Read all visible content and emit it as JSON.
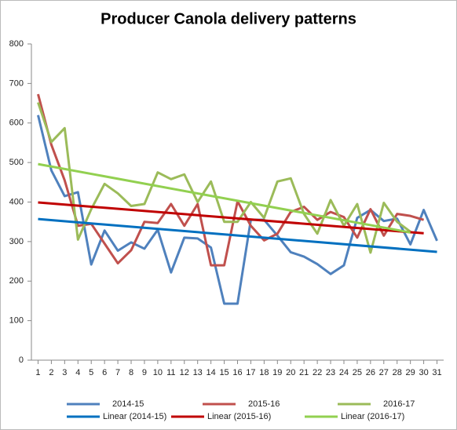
{
  "chart_data": {
    "type": "line",
    "title": "Producer Canola delivery patterns",
    "x": [
      1,
      2,
      3,
      4,
      5,
      6,
      7,
      8,
      9,
      10,
      11,
      12,
      13,
      14,
      15,
      16,
      17,
      18,
      19,
      20,
      21,
      22,
      23,
      24,
      25,
      26,
      27,
      28,
      29,
      30,
      31
    ],
    "xlim": [
      0.5,
      31.5
    ],
    "xticks": [
      1,
      2,
      3,
      4,
      5,
      6,
      7,
      8,
      9,
      10,
      11,
      12,
      13,
      14,
      15,
      16,
      17,
      18,
      19,
      20,
      21,
      22,
      23,
      24,
      25,
      26,
      27,
      28,
      29,
      30,
      31
    ],
    "ylim": [
      0,
      800
    ],
    "yticks": [
      0,
      100,
      200,
      300,
      400,
      500,
      600,
      700,
      800
    ],
    "grid": false,
    "legend": "bottom",
    "series": [
      {
        "name": "2014-15",
        "color": "#4f81bd",
        "values": [
          620,
          480,
          415,
          425,
          242,
          328,
          277,
          298,
          282,
          330,
          222,
          310,
          308,
          285,
          143,
          143,
          355,
          355,
          315,
          273,
          262,
          243,
          218,
          240,
          360,
          380,
          352,
          358,
          293,
          380,
          302
        ]
      },
      {
        "name": "2015-16",
        "color": "#c0504d",
        "values": [
          673,
          545,
          455,
          340,
          345,
          295,
          245,
          278,
          350,
          347,
          395,
          340,
          395,
          240,
          240,
          402,
          340,
          303,
          320,
          375,
          388,
          355,
          375,
          362,
          310,
          382,
          315,
          370,
          365,
          355,
          null
        ]
      },
      {
        "name": "2016-17",
        "color": "#9bbb59",
        "values": [
          652,
          552,
          587,
          305,
          382,
          446,
          422,
          390,
          395,
          475,
          458,
          470,
          400,
          452,
          350,
          350,
          400,
          360,
          452,
          460,
          370,
          320,
          405,
          340,
          395,
          272,
          398,
          350,
          325,
          null,
          null
        ]
      }
    ],
    "trendlines": [
      {
        "name": "Linear (2014-15)",
        "color": "#0070c0",
        "x": [
          1,
          31
        ],
        "values": [
          357,
          274
        ]
      },
      {
        "name": "Linear (2015-16)",
        "color": "#c00000",
        "x": [
          1,
          30
        ],
        "values": [
          399,
          321
        ]
      },
      {
        "name": "Linear (2016-17)",
        "color": "#92d050",
        "x": [
          1,
          29
        ],
        "values": [
          496,
          323
        ]
      }
    ]
  }
}
